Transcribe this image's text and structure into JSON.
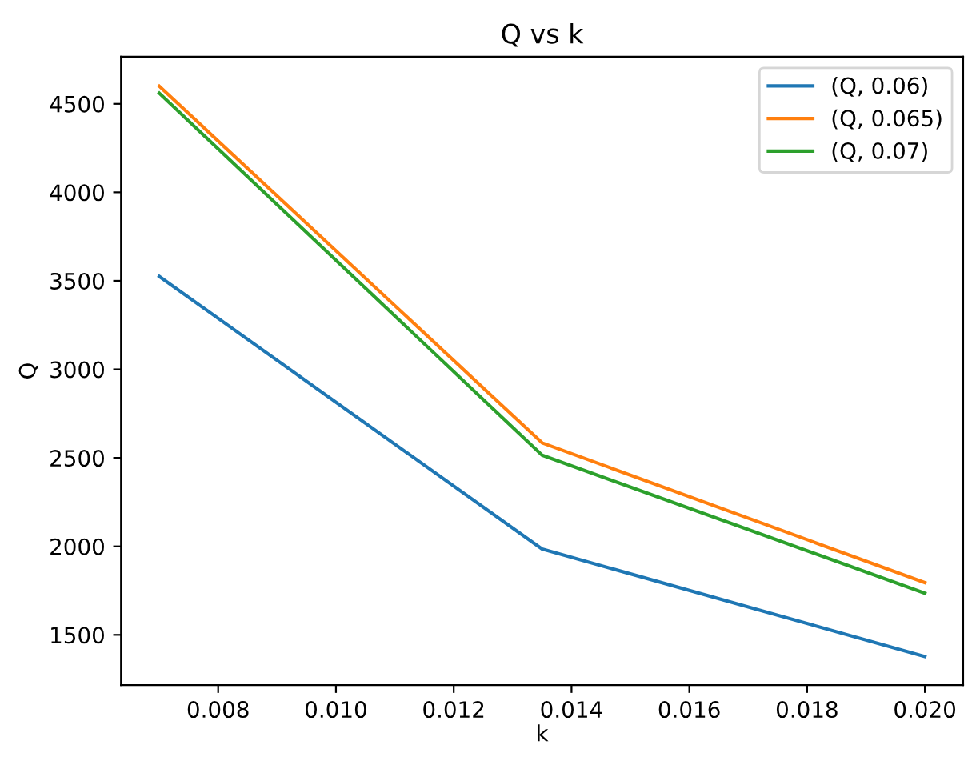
{
  "chart_data": {
    "type": "line",
    "title": "Q vs k",
    "xlabel": "k",
    "ylabel": "Q",
    "x": [
      0.007,
      0.0135,
      0.02
    ],
    "series": [
      {
        "name": "(Q, 0.06)",
        "color": "#1f77b4",
        "values": [
          3525,
          1985,
          1377
        ]
      },
      {
        "name": "(Q, 0.065)",
        "color": "#ff7f0e",
        "values": [
          4600,
          2585,
          1795
        ]
      },
      {
        "name": "(Q, 0.07)",
        "color": "#2ca02c",
        "values": [
          4560,
          2515,
          1735
        ]
      }
    ],
    "xlim": [
      0.00635,
      0.02065
    ],
    "xticks": [
      {
        "value": 0.008,
        "label": "0.008"
      },
      {
        "value": 0.01,
        "label": "0.010"
      },
      {
        "value": 0.012,
        "label": "0.012"
      },
      {
        "value": 0.014,
        "label": "0.014"
      },
      {
        "value": 0.016,
        "label": "0.016"
      },
      {
        "value": 0.018,
        "label": "0.018"
      },
      {
        "value": 0.02,
        "label": "0.020"
      }
    ],
    "ylim": [
      1216,
      4766
    ],
    "yticks": [
      1500,
      2000,
      2500,
      3000,
      3500,
      4000,
      4500
    ],
    "grid": false,
    "legend": "top right",
    "marker": "none",
    "line_style": "solid"
  }
}
